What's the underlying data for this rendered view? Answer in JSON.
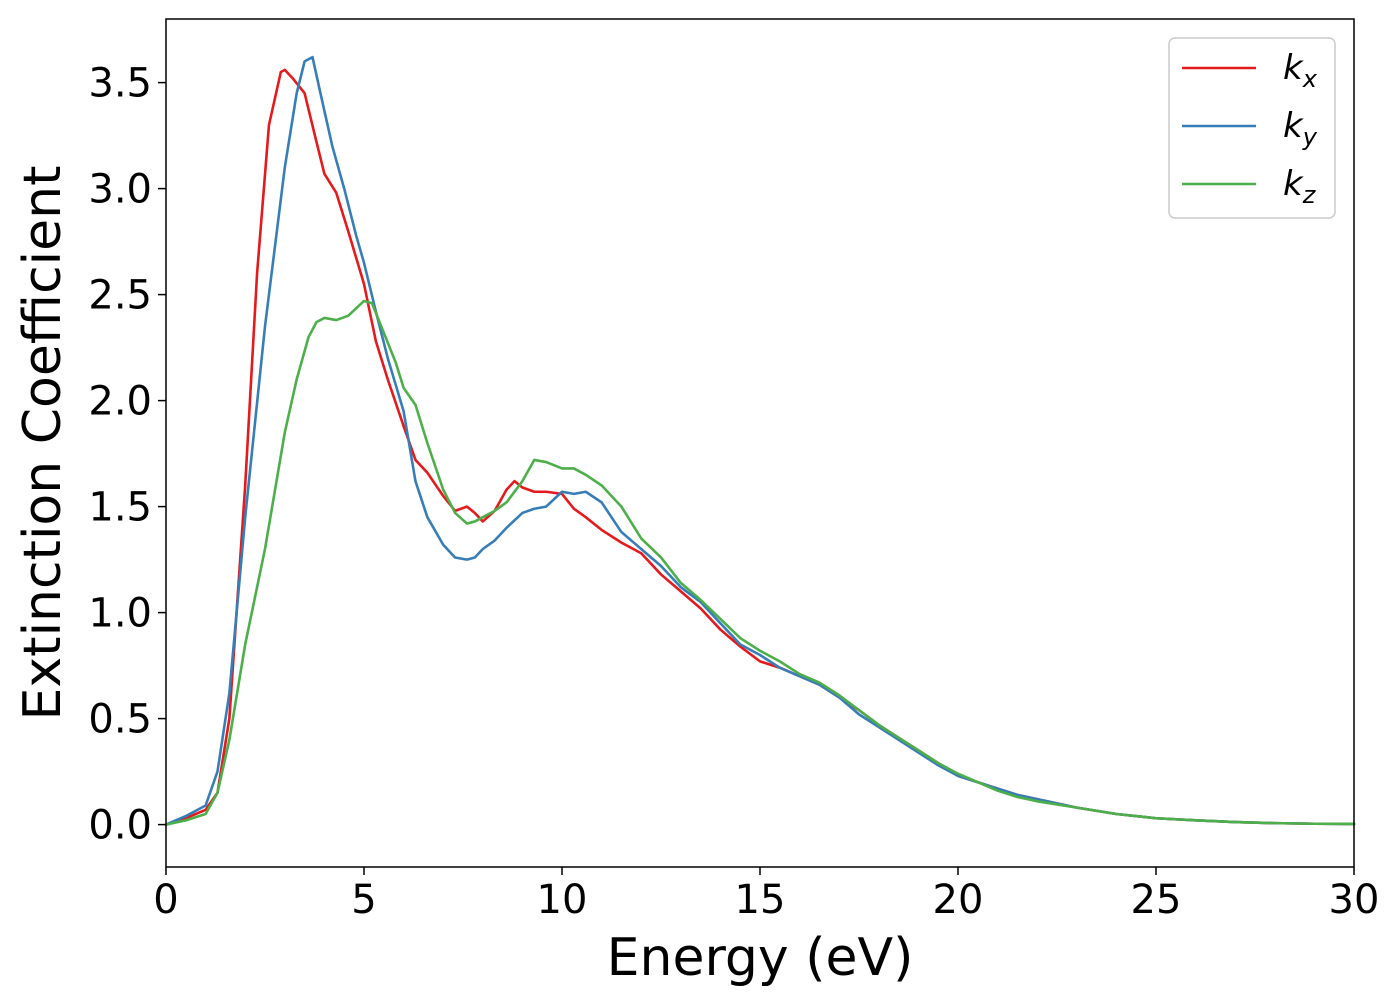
{
  "chart_data": {
    "type": "line",
    "xlabel": "Energy (eV)",
    "ylabel": "Extinction Coefficient",
    "xlim": [
      0,
      30
    ],
    "ylim": [
      -0.2,
      3.8
    ],
    "xticks": [
      0,
      5,
      10,
      15,
      20,
      25,
      30
    ],
    "xtick_labels": [
      "0",
      "5",
      "10",
      "15",
      "20",
      "25",
      "30"
    ],
    "yticks": [
      0.0,
      0.5,
      1.0,
      1.5,
      2.0,
      2.5,
      3.0,
      3.5
    ],
    "ytick_labels": [
      "0.0",
      "0.5",
      "1.0",
      "1.5",
      "2.0",
      "2.5",
      "3.0",
      "3.5"
    ],
    "grid": false,
    "legend_position": "top-right",
    "series": [
      {
        "name": "k",
        "subscript": "x",
        "color": "#e41a1c",
        "x": [
          0,
          0.5,
          1.0,
          1.3,
          1.6,
          2.0,
          2.3,
          2.6,
          2.9,
          3.0,
          3.2,
          3.5,
          3.8,
          4.0,
          4.3,
          4.6,
          5.0,
          5.3,
          5.6,
          6.0,
          6.3,
          6.6,
          7.0,
          7.3,
          7.6,
          7.8,
          8.0,
          8.3,
          8.6,
          8.8,
          9.0,
          9.3,
          9.6,
          10.0,
          10.3,
          10.6,
          11.0,
          11.5,
          12.0,
          12.5,
          13.0,
          13.5,
          14.0,
          14.5,
          15.0,
          15.5,
          16.0,
          16.5,
          17.0,
          17.5,
          18.0,
          18.5,
          19.0,
          19.5,
          20.0,
          20.5,
          21.0,
          21.5,
          22.0,
          23.0,
          24.0,
          25.0,
          26.0,
          27.0,
          28.0,
          29.0,
          30.0
        ],
        "values": [
          0.0,
          0.03,
          0.07,
          0.15,
          0.5,
          1.6,
          2.6,
          3.3,
          3.55,
          3.56,
          3.52,
          3.45,
          3.22,
          3.07,
          2.98,
          2.8,
          2.55,
          2.28,
          2.1,
          1.88,
          1.72,
          1.66,
          1.55,
          1.48,
          1.5,
          1.47,
          1.43,
          1.48,
          1.58,
          1.62,
          1.59,
          1.57,
          1.57,
          1.56,
          1.49,
          1.45,
          1.39,
          1.33,
          1.28,
          1.18,
          1.1,
          1.02,
          0.92,
          0.84,
          0.77,
          0.74,
          0.7,
          0.66,
          0.6,
          0.54,
          0.47,
          0.41,
          0.35,
          0.29,
          0.23,
          0.2,
          0.17,
          0.14,
          0.12,
          0.08,
          0.05,
          0.03,
          0.02,
          0.012,
          0.007,
          0.004,
          0.003
        ]
      },
      {
        "name": "k",
        "subscript": "y",
        "color": "#377eb8",
        "x": [
          0,
          0.5,
          1.0,
          1.3,
          1.6,
          2.0,
          2.5,
          3.0,
          3.3,
          3.5,
          3.7,
          3.9,
          4.2,
          4.5,
          4.8,
          5.0,
          5.3,
          5.6,
          6.0,
          6.3,
          6.6,
          7.0,
          7.3,
          7.6,
          7.8,
          8.0,
          8.3,
          8.6,
          9.0,
          9.3,
          9.6,
          10.0,
          10.3,
          10.6,
          11.0,
          11.5,
          12.0,
          12.5,
          13.0,
          13.5,
          14.0,
          14.5,
          15.0,
          15.5,
          16.0,
          16.5,
          17.0,
          17.5,
          18.0,
          18.5,
          19.0,
          19.5,
          20.0,
          20.5,
          21.0,
          21.5,
          22.0,
          23.0,
          24.0,
          25.0,
          26.0,
          27.0,
          28.0,
          29.0,
          30.0
        ],
        "values": [
          0.0,
          0.04,
          0.09,
          0.25,
          0.62,
          1.45,
          2.35,
          3.1,
          3.45,
          3.6,
          3.62,
          3.45,
          3.2,
          3.0,
          2.78,
          2.65,
          2.42,
          2.2,
          1.95,
          1.62,
          1.45,
          1.32,
          1.26,
          1.25,
          1.26,
          1.3,
          1.34,
          1.4,
          1.47,
          1.49,
          1.5,
          1.57,
          1.56,
          1.57,
          1.52,
          1.38,
          1.3,
          1.22,
          1.12,
          1.05,
          0.95,
          0.85,
          0.8,
          0.74,
          0.7,
          0.66,
          0.6,
          0.52,
          0.46,
          0.4,
          0.34,
          0.28,
          0.23,
          0.2,
          0.17,
          0.14,
          0.12,
          0.08,
          0.05,
          0.03,
          0.02,
          0.012,
          0.007,
          0.004,
          0.003
        ]
      },
      {
        "name": "k",
        "subscript": "z",
        "color": "#4daf4a",
        "x": [
          0,
          0.5,
          1.0,
          1.3,
          1.6,
          2.0,
          2.5,
          3.0,
          3.3,
          3.6,
          3.8,
          4.0,
          4.3,
          4.6,
          5.0,
          5.2,
          5.5,
          5.8,
          6.0,
          6.3,
          6.6,
          7.0,
          7.3,
          7.6,
          7.8,
          8.0,
          8.3,
          8.6,
          9.0,
          9.3,
          9.6,
          10.0,
          10.3,
          10.6,
          11.0,
          11.5,
          12.0,
          12.5,
          13.0,
          13.5,
          14.0,
          14.5,
          15.0,
          15.5,
          16.0,
          16.5,
          17.0,
          17.5,
          18.0,
          18.5,
          19.0,
          19.5,
          20.0,
          20.5,
          21.0,
          21.5,
          22.0,
          23.0,
          24.0,
          25.0,
          26.0,
          27.0,
          28.0,
          29.0,
          30.0
        ],
        "values": [
          0.0,
          0.02,
          0.05,
          0.15,
          0.4,
          0.85,
          1.3,
          1.85,
          2.1,
          2.3,
          2.37,
          2.39,
          2.38,
          2.4,
          2.47,
          2.46,
          2.32,
          2.18,
          2.06,
          1.98,
          1.8,
          1.58,
          1.47,
          1.42,
          1.43,
          1.45,
          1.48,
          1.52,
          1.62,
          1.72,
          1.71,
          1.68,
          1.68,
          1.65,
          1.6,
          1.5,
          1.35,
          1.26,
          1.14,
          1.06,
          0.97,
          0.88,
          0.82,
          0.77,
          0.71,
          0.67,
          0.61,
          0.54,
          0.47,
          0.41,
          0.35,
          0.29,
          0.24,
          0.2,
          0.16,
          0.13,
          0.11,
          0.08,
          0.05,
          0.03,
          0.02,
          0.012,
          0.007,
          0.004,
          0.003
        ]
      }
    ]
  }
}
